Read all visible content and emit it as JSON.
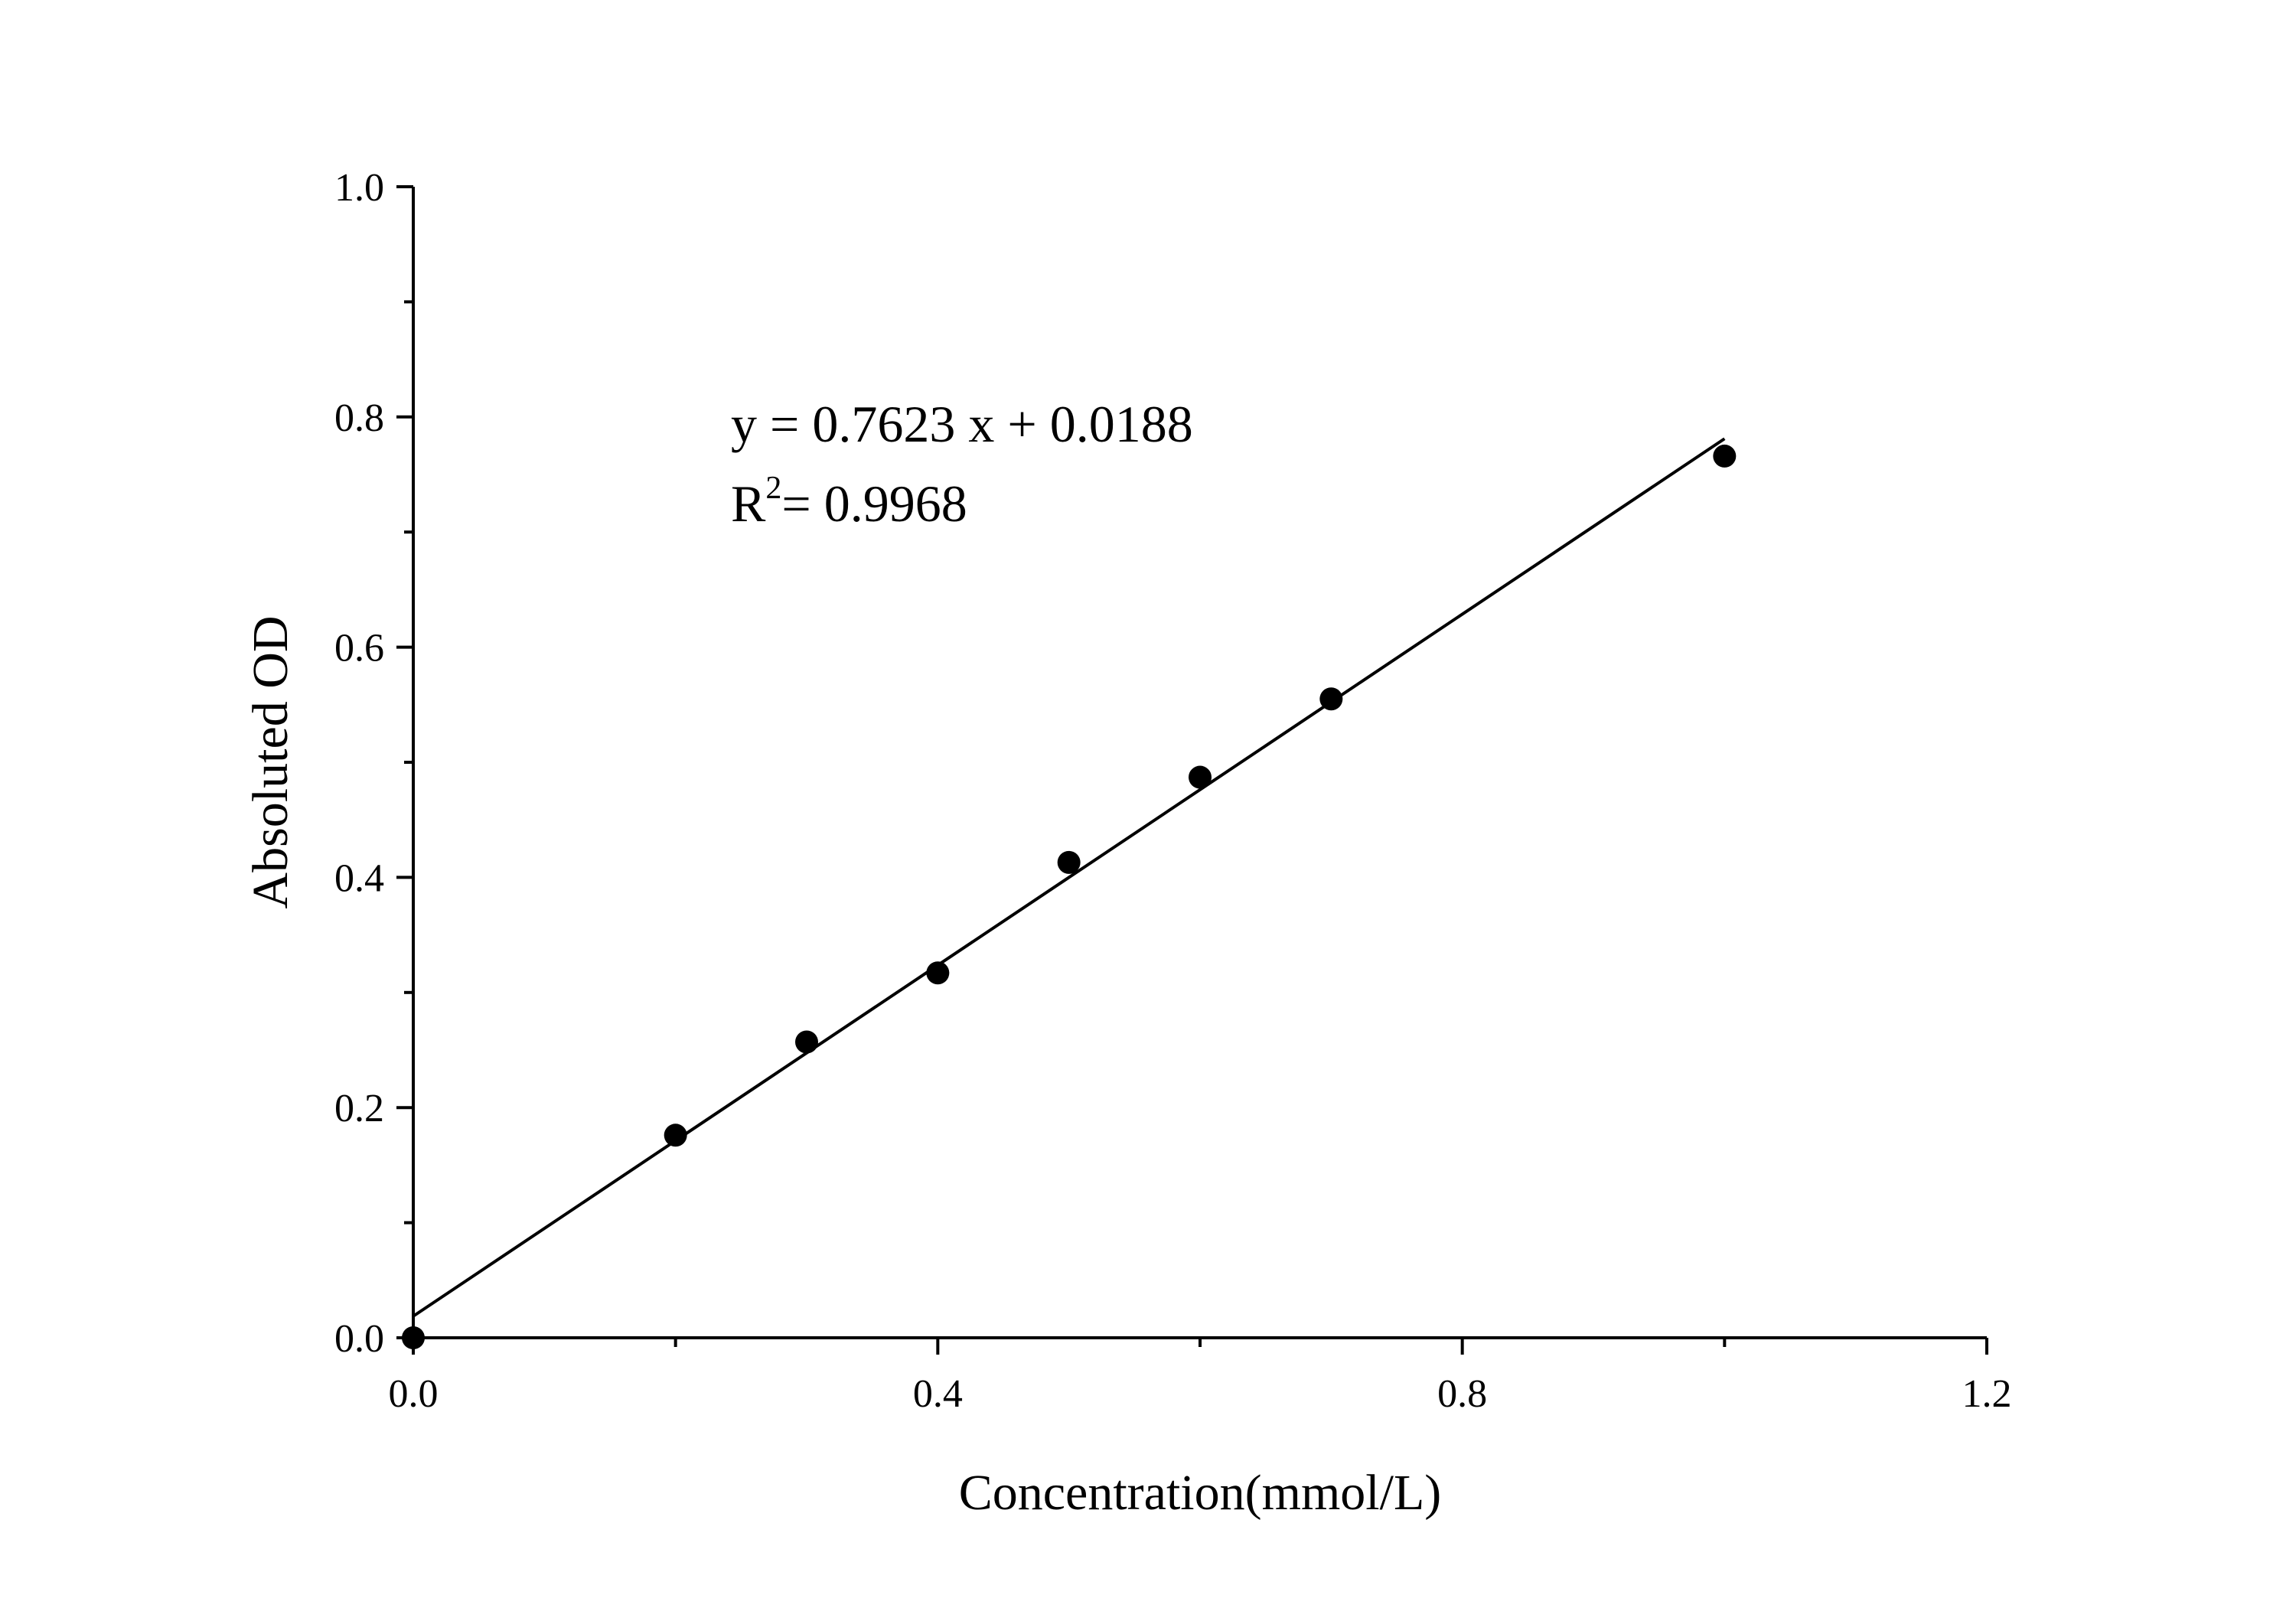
{
  "chart_data": {
    "type": "scatter",
    "title": "",
    "xlabel": "Concentration(mmol/L)",
    "ylabel": "Absoluted OD",
    "xlim": [
      0,
      1.2
    ],
    "ylim": [
      0,
      1.0
    ],
    "xticks": [
      "0.0",
      "0.4",
      "0.8",
      "1.2"
    ],
    "yticks": [
      "0.0",
      "0.2",
      "0.4",
      "0.6",
      "0.8",
      "1.0"
    ],
    "grid": false,
    "points": [
      {
        "x": 0.0,
        "y": 0.0
      },
      {
        "x": 0.2,
        "y": 0.176
      },
      {
        "x": 0.3,
        "y": 0.257
      },
      {
        "x": 0.4,
        "y": 0.317
      },
      {
        "x": 0.5,
        "y": 0.413
      },
      {
        "x": 0.6,
        "y": 0.487
      },
      {
        "x": 0.7,
        "y": 0.555
      },
      {
        "x": 1.0,
        "y": 0.766
      }
    ],
    "fit": {
      "slope": 0.7623,
      "intercept": 0.0188,
      "x_range": [
        0,
        1.0
      ]
    },
    "annotations": {
      "equation": "y = 0.7623 x + 0.0188",
      "r2_label": "R",
      "r2_sup": "2",
      "r2_value": "= 0.9968"
    },
    "colors": {
      "marker": "#000000",
      "line": "#000000"
    }
  }
}
